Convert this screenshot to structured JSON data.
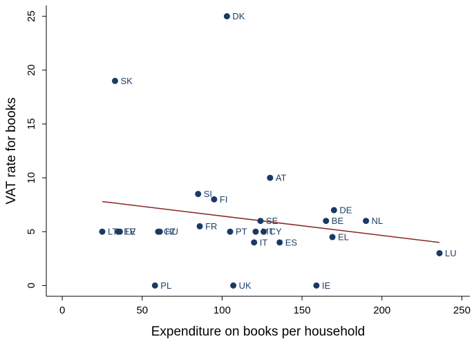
{
  "chart_data": {
    "type": "scatter",
    "xlabel": "Expenditure on books per household",
    "ylabel": "VAT rate for books",
    "xlim": [
      -10,
      255
    ],
    "ylim": [
      -1,
      26
    ],
    "xticks": [
      0,
      50,
      100,
      150,
      200,
      250
    ],
    "yticks": [
      0,
      5,
      10,
      15,
      20,
      25
    ],
    "grid": false,
    "legend": "none",
    "marker_color": "#1a3a63",
    "fit_line_color": "#8b2323",
    "points": [
      {
        "label": "DK",
        "x": 103,
        "y": 25
      },
      {
        "label": "SK",
        "x": 33,
        "y": 19
      },
      {
        "label": "AT",
        "x": 130,
        "y": 10
      },
      {
        "label": "SI",
        "x": 85,
        "y": 8.5
      },
      {
        "label": "FI",
        "x": 95,
        "y": 8
      },
      {
        "label": "DE",
        "x": 170,
        "y": 7
      },
      {
        "label": "SE",
        "x": 124,
        "y": 6
      },
      {
        "label": "BE",
        "x": 165,
        "y": 6
      },
      {
        "label": "NL",
        "x": 190,
        "y": 6
      },
      {
        "label": "FR",
        "x": 86,
        "y": 5.5
      },
      {
        "label": "LT",
        "x": 25,
        "y": 5
      },
      {
        "label": "EE",
        "x": 35,
        "y": 5
      },
      {
        "label": "LV",
        "x": 36,
        "y": 5
      },
      {
        "label": "CZ",
        "x": 60,
        "y": 5
      },
      {
        "label": "HU",
        "x": 61,
        "y": 5
      },
      {
        "label": "PT",
        "x": 105,
        "y": 5
      },
      {
        "label": "MT",
        "x": 121,
        "y": 5
      },
      {
        "label": "CY",
        "x": 126,
        "y": 5
      },
      {
        "label": "EL",
        "x": 169,
        "y": 4.5
      },
      {
        "label": "IT",
        "x": 120,
        "y": 4
      },
      {
        "label": "ES",
        "x": 136,
        "y": 4
      },
      {
        "label": "LU",
        "x": 236,
        "y": 3
      },
      {
        "label": "PL",
        "x": 58,
        "y": 0
      },
      {
        "label": "UK",
        "x": 107,
        "y": 0
      },
      {
        "label": "IE",
        "x": 159,
        "y": 0
      }
    ],
    "fit_line": {
      "x": [
        25,
        236
      ],
      "y": [
        7.8,
        4.0
      ]
    }
  }
}
